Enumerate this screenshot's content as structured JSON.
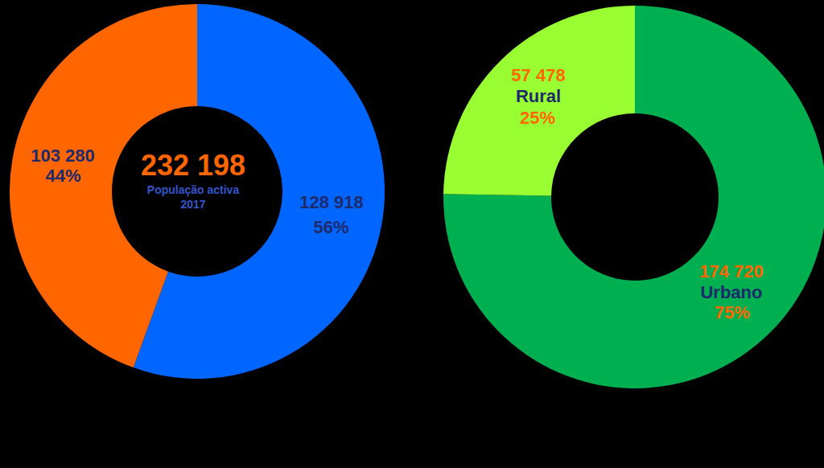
{
  "chart_data": [
    {
      "type": "pie",
      "total": {
        "value": 232198,
        "label": "232 198"
      },
      "subtitle": [
        "População activa",
        "2017"
      ],
      "values": [
        128918,
        103280
      ],
      "value_labels": [
        "128 918",
        "103 280"
      ],
      "percentages": [
        56,
        44
      ],
      "percentage_labels": [
        "56%",
        "44%"
      ],
      "colors": [
        "#0066ff",
        "#ff6600"
      ],
      "data_labels": true
    },
    {
      "type": "pie",
      "categories": [
        "Urbano",
        "Rural"
      ],
      "values": [
        174720,
        57478
      ],
      "value_labels": [
        "174 720",
        "57 478"
      ],
      "percentages": [
        75,
        25
      ],
      "percentage_labels": [
        "75%",
        "25%"
      ],
      "colors": [
        "#00b050",
        "#99ff33"
      ],
      "data_labels": true
    }
  ]
}
